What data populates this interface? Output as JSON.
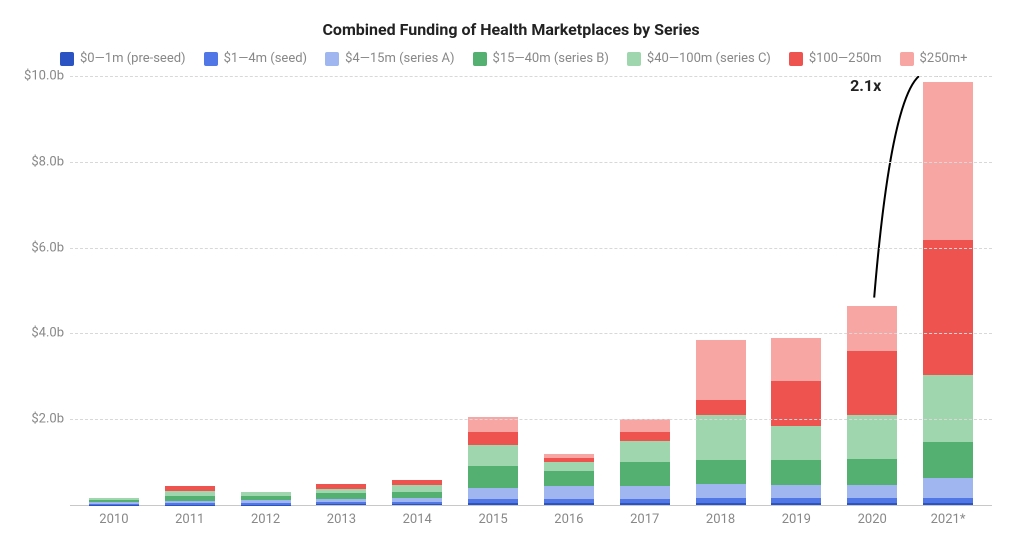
{
  "chart": {
    "type": "stacked-bar",
    "title": "Combined Funding of Health Marketplaces by Series",
    "title_fontsize": 16,
    "legend_fontsize": 13,
    "axis_fontsize": 13,
    "background_color": "#ffffff",
    "grid_color": "#d8d8d8",
    "axis_text_color": "#888888",
    "ylim": [
      0,
      10
    ],
    "ytick_step": 2,
    "yticks": [
      {
        "value": 2,
        "label": "$2.0b"
      },
      {
        "value": 4,
        "label": "$4.0b"
      },
      {
        "value": 6,
        "label": "$6.0b"
      },
      {
        "value": 8,
        "label": "$8.0b"
      },
      {
        "value": 10,
        "label": "$10.0b"
      }
    ],
    "xlabels": [
      "2010",
      "2011",
      "2012",
      "2013",
      "2014",
      "2015",
      "2016",
      "2017",
      "2018",
      "2019",
      "2020",
      "2021*"
    ],
    "series": [
      {
        "key": "pre_seed",
        "label": "$0—1m (pre-seed)",
        "color": "#2b53c2"
      },
      {
        "key": "seed",
        "label": "$1—4m (seed)",
        "color": "#5176e6"
      },
      {
        "key": "series_a",
        "label": "$4—15m (series A)",
        "color": "#9fb6f1"
      },
      {
        "key": "series_b",
        "label": "$15—40m (series B)",
        "color": "#53b070"
      },
      {
        "key": "series_c",
        "label": "$40—100m (series C)",
        "color": "#9fd6ad"
      },
      {
        "key": "s100_250",
        "label": "$100—250m",
        "color": "#ef5350"
      },
      {
        "key": "s250_plus",
        "label": "$250m+",
        "color": "#f7a6a4"
      }
    ],
    "data": [
      {
        "pre_seed": 0.01,
        "seed": 0.02,
        "series_a": 0.03,
        "series_b": 0.05,
        "series_c": 0.05,
        "s100_250": 0.0,
        "s250_plus": 0.0
      },
      {
        "pre_seed": 0.01,
        "seed": 0.03,
        "series_a": 0.06,
        "series_b": 0.12,
        "series_c": 0.1,
        "s100_250": 0.12,
        "s250_plus": 0.0
      },
      {
        "pre_seed": 0.01,
        "seed": 0.03,
        "series_a": 0.07,
        "series_b": 0.1,
        "series_c": 0.1,
        "s100_250": 0.0,
        "s250_plus": 0.0
      },
      {
        "pre_seed": 0.02,
        "seed": 0.04,
        "series_a": 0.09,
        "series_b": 0.13,
        "series_c": 0.1,
        "s100_250": 0.1,
        "s250_plus": 0.0
      },
      {
        "pre_seed": 0.02,
        "seed": 0.04,
        "series_a": 0.1,
        "series_b": 0.15,
        "series_c": 0.15,
        "s100_250": 0.12,
        "s250_plus": 0.0
      },
      {
        "pre_seed": 0.05,
        "seed": 0.1,
        "series_a": 0.25,
        "series_b": 0.5,
        "series_c": 0.5,
        "s100_250": 0.3,
        "s250_plus": 0.35
      },
      {
        "pre_seed": 0.05,
        "seed": 0.1,
        "series_a": 0.3,
        "series_b": 0.35,
        "series_c": 0.2,
        "s100_250": 0.1,
        "s250_plus": 0.1
      },
      {
        "pre_seed": 0.05,
        "seed": 0.1,
        "series_a": 0.3,
        "series_b": 0.55,
        "series_c": 0.5,
        "s100_250": 0.2,
        "s250_plus": 0.3
      },
      {
        "pre_seed": 0.05,
        "seed": 0.12,
        "series_a": 0.33,
        "series_b": 0.55,
        "series_c": 1.05,
        "s100_250": 0.35,
        "s250_plus": 1.4
      },
      {
        "pre_seed": 0.05,
        "seed": 0.12,
        "series_a": 0.3,
        "series_b": 0.58,
        "series_c": 0.8,
        "s100_250": 1.05,
        "s250_plus": 1.0
      },
      {
        "pre_seed": 0.05,
        "seed": 0.12,
        "series_a": 0.3,
        "series_b": 0.6,
        "series_c": 1.03,
        "s100_250": 1.5,
        "s250_plus": 1.05
      },
      {
        "pre_seed": 0.05,
        "seed": 0.12,
        "series_a": 0.45,
        "series_b": 0.85,
        "series_c": 1.55,
        "s100_250": 3.15,
        "s250_plus": 3.7
      }
    ],
    "annotation": {
      "text": "2.1x",
      "fontsize": 16,
      "arrow": {
        "from_year_index": 10,
        "to_year_index": 11,
        "color": "#000000"
      }
    }
  }
}
